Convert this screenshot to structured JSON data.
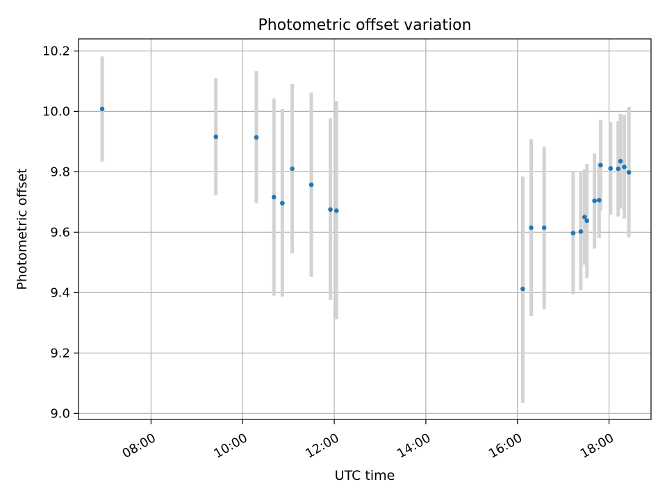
{
  "chart_data": {
    "type": "scatter",
    "title": "Photometric offset variation",
    "xlabel": "UTC time",
    "ylabel": "Photometric offset",
    "x_unit": "UTC time of day (HH:MM)",
    "xlim": [
      "06:25",
      "18:55"
    ],
    "ylim": [
      8.98,
      10.24
    ],
    "x_ticks": [
      "08:00",
      "10:00",
      "12:00",
      "14:00",
      "16:00",
      "18:00"
    ],
    "y_ticks": [
      "9.0",
      "9.2",
      "9.4",
      "9.6",
      "9.8",
      "10.0",
      "10.2"
    ],
    "grid": true,
    "legend": "none",
    "colors": {
      "point": "#1f77b4",
      "errorbar": "#d3d3d3",
      "grid": "#b0b0b0"
    },
    "points": [
      {
        "x": "06:56",
        "y": 10.008,
        "ylow": 9.834,
        "yhigh": 10.182
      },
      {
        "x": "09:25",
        "y": 9.916,
        "ylow": 9.722,
        "yhigh": 10.11
      },
      {
        "x": "10:18",
        "y": 9.914,
        "ylow": 9.696,
        "yhigh": 10.134
      },
      {
        "x": "10:41",
        "y": 9.716,
        "ylow": 9.39,
        "yhigh": 10.043
      },
      {
        "x": "10:52",
        "y": 9.696,
        "ylow": 9.386,
        "yhigh": 10.008
      },
      {
        "x": "11:05",
        "y": 9.81,
        "ylow": 9.531,
        "yhigh": 10.091
      },
      {
        "x": "11:30",
        "y": 9.757,
        "ylow": 9.452,
        "yhigh": 10.062
      },
      {
        "x": "11:55",
        "y": 9.675,
        "ylow": 9.376,
        "yhigh": 9.977
      },
      {
        "x": "12:03",
        "y": 9.671,
        "ylow": 9.312,
        "yhigh": 10.034
      },
      {
        "x": "16:07",
        "y": 9.412,
        "ylow": 9.035,
        "yhigh": 9.784
      },
      {
        "x": "16:18",
        "y": 9.615,
        "ylow": 9.322,
        "yhigh": 9.908
      },
      {
        "x": "16:35",
        "y": 9.615,
        "ylow": 9.345,
        "yhigh": 9.883
      },
      {
        "x": "17:13",
        "y": 9.597,
        "ylow": 9.394,
        "yhigh": 9.8
      },
      {
        "x": "17:23",
        "y": 9.602,
        "ylow": 9.407,
        "yhigh": 9.798
      },
      {
        "x": "17:28",
        "y": 9.65,
        "ylow": 9.492,
        "yhigh": 9.808
      },
      {
        "x": "17:31",
        "y": 9.638,
        "ylow": 9.449,
        "yhigh": 9.826
      },
      {
        "x": "17:41",
        "y": 9.704,
        "ylow": 9.546,
        "yhigh": 9.861
      },
      {
        "x": "17:47",
        "y": 9.706,
        "ylow": 9.58,
        "yhigh": 9.832
      },
      {
        "x": "17:49",
        "y": 9.822,
        "ylow": 9.672,
        "yhigh": 9.972
      },
      {
        "x": "18:02",
        "y": 9.811,
        "ylow": 9.658,
        "yhigh": 9.964
      },
      {
        "x": "18:12",
        "y": 9.81,
        "ylow": 9.652,
        "yhigh": 9.968
      },
      {
        "x": "18:15",
        "y": 9.835,
        "ylow": 9.678,
        "yhigh": 9.992
      },
      {
        "x": "18:20",
        "y": 9.816,
        "ylow": 9.645,
        "yhigh": 9.988
      },
      {
        "x": "18:26",
        "y": 9.798,
        "ylow": 9.582,
        "yhigh": 10.015
      }
    ]
  }
}
